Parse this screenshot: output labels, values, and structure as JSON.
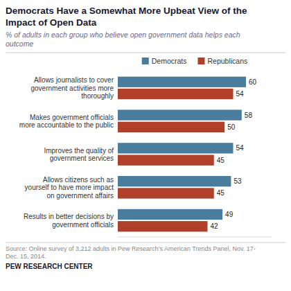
{
  "chart_data": {
    "type": "bar",
    "orientation": "horizontal",
    "title": "Democrats Have a Somewhat More Upbeat View of the\nImpact of Open Data",
    "subtitle": "% of adults in each group who believe open government data helps each\noutcome",
    "categories": [
      "Allows journalists to cover\ngovernment activities more\nthoroughly",
      "Makes government officials\nmore accountable to the public",
      "Improves the quality of\ngovernment services",
      "Allows citizens such as\nyourself to have more impact\non government affairs",
      "Results in better decisions by\ngovernment officials"
    ],
    "series": [
      {
        "name": "Democrats",
        "color": "#4a7c9e",
        "values": [
          60,
          58,
          54,
          53,
          49
        ]
      },
      {
        "name": "Republicans",
        "color": "#b0402a",
        "values": [
          54,
          50,
          45,
          45,
          42
        ]
      }
    ],
    "xlim": [
      0,
      72
    ],
    "data_labels": true,
    "tick_labels": "y",
    "grid": false,
    "legend": "top",
    "annotations": [
      "Source: Online survey of 3,212 adults in Pew Research’s American Trends Panel, Nov. 17-\nDec. 15, 2014.",
      "PEW RESEARCH CENTER"
    ]
  }
}
